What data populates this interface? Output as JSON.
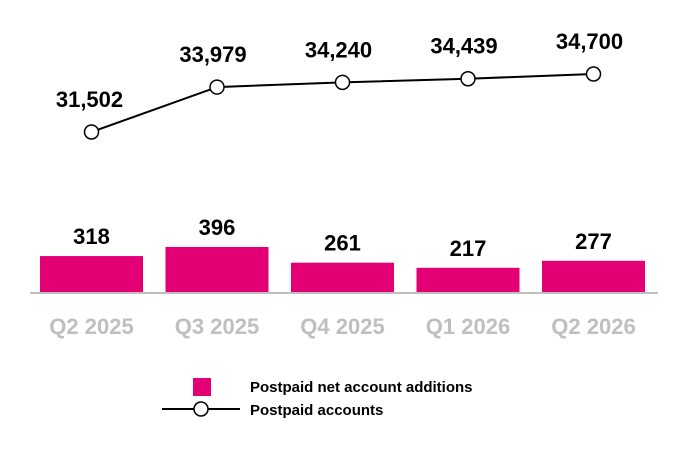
{
  "chart_data": {
    "type": "bar+line",
    "categories": [
      "Q2 2025",
      "Q3 2025",
      "Q4 2025",
      "Q1 2026",
      "Q2 2026"
    ],
    "series": [
      {
        "name": "Postpaid net account additions",
        "kind": "bar",
        "color": "#e20074",
        "values": [
          318,
          396,
          261,
          217,
          277
        ],
        "labels": [
          "318",
          "396",
          "261",
          "217",
          "277"
        ]
      },
      {
        "name": "Postpaid accounts",
        "kind": "line",
        "color": "#000000",
        "values": [
          31502,
          33979,
          34240,
          34439,
          34700
        ],
        "labels": [
          "31,502",
          "33,979",
          "34,240",
          "34,439",
          "34,700"
        ]
      }
    ],
    "legend": {
      "position": "bottom-center"
    },
    "grid": false
  }
}
